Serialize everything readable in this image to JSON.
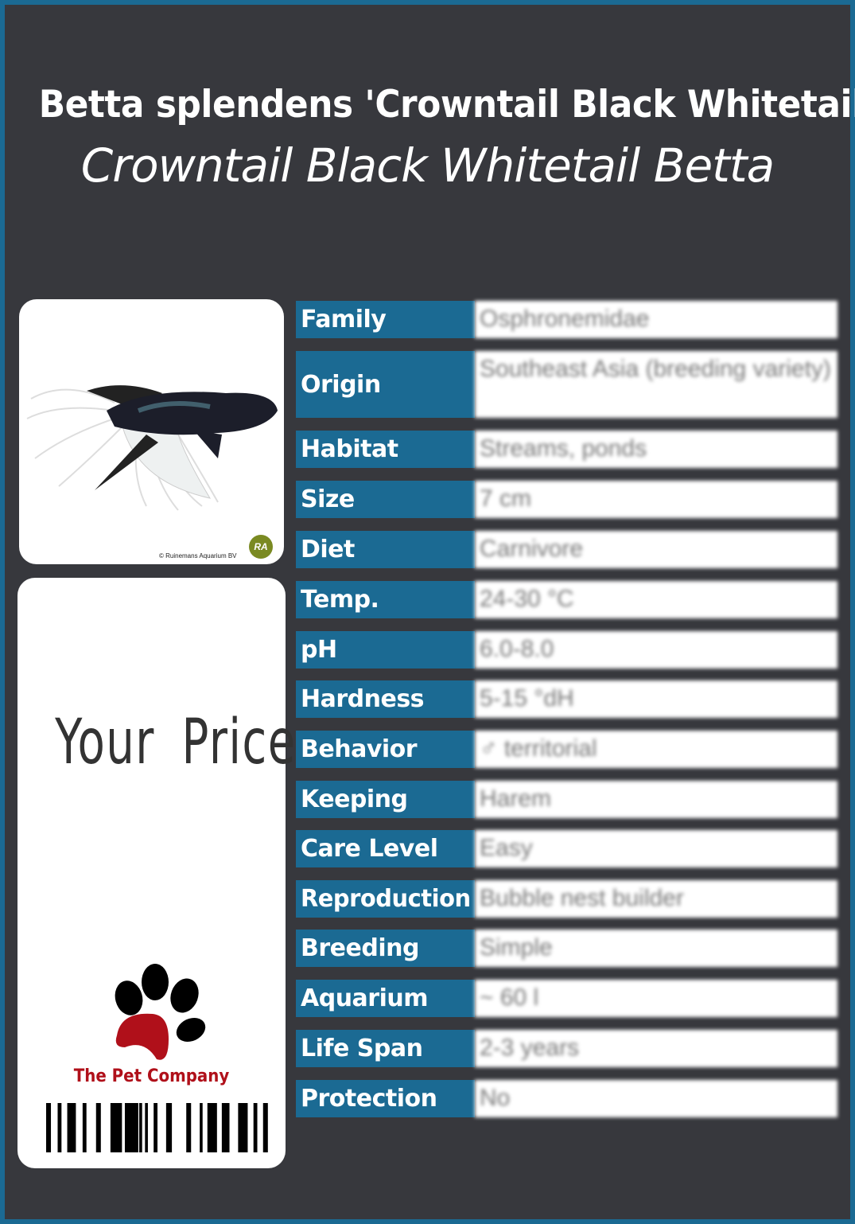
{
  "header": {
    "scientific_name": "Betta splendens 'Crowntail Black Whitetail'",
    "common_name": "Crowntail Black Whitetail Betta"
  },
  "image": {
    "copyright": "© Ruinemans Aquarium BV",
    "logo_text": "RA"
  },
  "price": {
    "label": "Your Price"
  },
  "brand": {
    "name": "The Pet Company"
  },
  "colors": {
    "accent": "#1b6a93",
    "background": "#37383d",
    "brand_red": "#b0101a"
  },
  "facts": [
    {
      "label": "Family",
      "value": "Osphronemidae"
    },
    {
      "label": "Origin",
      "value": "Southeast Asia (breeding variety)"
    },
    {
      "label": "Habitat",
      "value": "Streams, ponds"
    },
    {
      "label": "Size",
      "value": "7 cm"
    },
    {
      "label": "Diet",
      "value": "Carnivore"
    },
    {
      "label": "Temp.",
      "value": "24-30 °C"
    },
    {
      "label": "pH",
      "value": "6.0-8.0"
    },
    {
      "label": "Hardness",
      "value": "5-15 °dH"
    },
    {
      "label": "Behavior",
      "value": "♂ territorial"
    },
    {
      "label": "Keeping",
      "value": "Harem"
    },
    {
      "label": "Care Level",
      "value": "Easy"
    },
    {
      "label": "Reproduction",
      "value": "Bubble nest builder"
    },
    {
      "label": "Breeding",
      "value": "Simple"
    },
    {
      "label": "Aquarium",
      "value": "~ 60 l"
    },
    {
      "label": "Life Span",
      "value": "2-3 years"
    },
    {
      "label": "Protection",
      "value": "No"
    }
  ]
}
